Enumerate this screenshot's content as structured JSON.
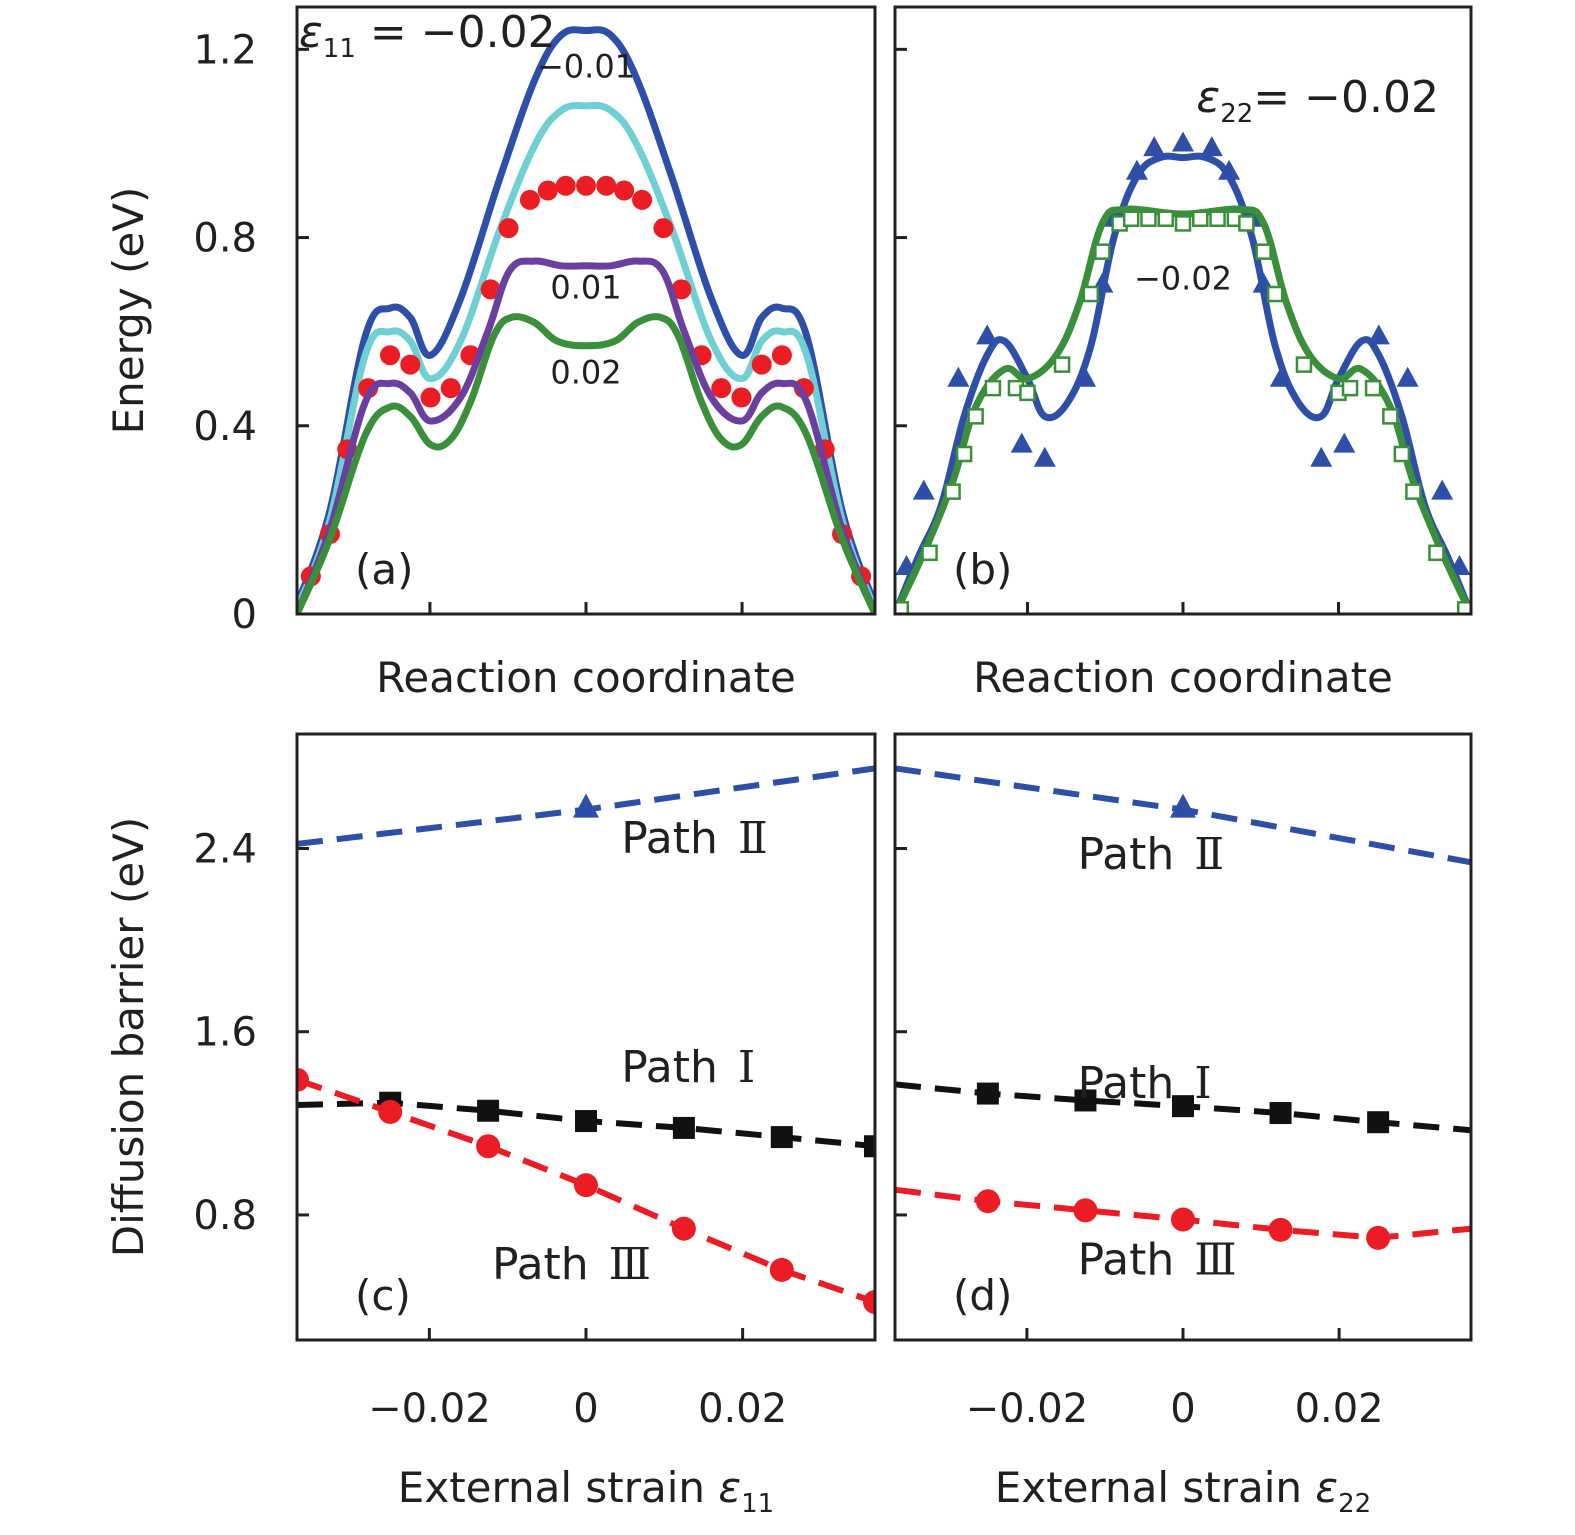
{
  "chart_data": [
    {
      "panel": "a",
      "type": "line",
      "panel_label": "(a)",
      "xlabel": "Reaction coordinate",
      "ylabel": "Energy (eV)",
      "ylim": [
        0,
        1.29
      ],
      "xlim": [
        0,
        1
      ],
      "yticks": [
        0,
        0.4,
        0.8,
        1.2
      ],
      "ytick_labels": [
        "0",
        "0.4",
        "0.8",
        "1.2"
      ],
      "xticks": [
        0.23,
        0.5,
        0.77
      ],
      "xtick_labels": [
        "",
        "",
        ""
      ],
      "annotations": [
        {
          "text_parts": [
            "ε",
            "11",
            " = −0.02"
          ],
          "anchor": "top-left"
        },
        {
          "text": "−0.01",
          "x": 0.5,
          "y": 1.14
        },
        {
          "text": "0.01",
          "x": 0.5,
          "y": 0.67
        },
        {
          "text": "0.02",
          "x": 0.5,
          "y": 0.49
        }
      ],
      "series": [
        {
          "name": "ε11 = −0.02",
          "style": "line",
          "color": "#2e4fa8",
          "x": [
            0,
            0.057,
            0.118,
            0.161,
            0.196,
            0.231,
            0.283,
            0.352,
            0.413,
            0.457,
            0.5
          ],
          "y": [
            0.02,
            0.22,
            0.59,
            0.65,
            0.63,
            0.55,
            0.67,
            0.93,
            1.14,
            1.23,
            1.24
          ],
          "mirrored": true
        },
        {
          "name": "ε11 = −0.01",
          "style": "line",
          "color": "#6fd0d3",
          "x": [
            0,
            0.057,
            0.118,
            0.161,
            0.196,
            0.231,
            0.283,
            0.352,
            0.413,
            0.457,
            0.5
          ],
          "y": [
            0.01,
            0.2,
            0.55,
            0.6,
            0.58,
            0.5,
            0.58,
            0.82,
            1.0,
            1.07,
            1.08
          ],
          "mirrored": true
        },
        {
          "name": "ε11 = 0",
          "style": "markers-circle",
          "color": "#ec1c24",
          "x": [
            0.024,
            0.057,
            0.087,
            0.123,
            0.161,
            0.196,
            0.231,
            0.266,
            0.3,
            0.335,
            0.366,
            0.403,
            0.434,
            0.465,
            0.5
          ],
          "y": [
            0.08,
            0.17,
            0.35,
            0.48,
            0.55,
            0.53,
            0.46,
            0.48,
            0.55,
            0.69,
            0.82,
            0.88,
            0.9,
            0.91,
            0.91
          ],
          "mirrored": true
        },
        {
          "name": "ε11 = 0.01",
          "style": "line",
          "color": "#6a3fa0",
          "x": [
            0,
            0.057,
            0.118,
            0.161,
            0.196,
            0.231,
            0.283,
            0.33,
            0.368,
            0.41,
            0.457,
            0.5
          ],
          "y": [
            0.0,
            0.18,
            0.45,
            0.49,
            0.47,
            0.41,
            0.46,
            0.6,
            0.73,
            0.75,
            0.74,
            0.74
          ],
          "mirrored": true
        },
        {
          "name": "ε11 = 0.02",
          "style": "line",
          "color": "#3a8f3a",
          "x": [
            0,
            0.057,
            0.118,
            0.161,
            0.196,
            0.231,
            0.265,
            0.3,
            0.34,
            0.37,
            0.41,
            0.45,
            0.5
          ],
          "y": [
            0.0,
            0.16,
            0.38,
            0.44,
            0.42,
            0.36,
            0.37,
            0.45,
            0.59,
            0.63,
            0.62,
            0.58,
            0.57
          ],
          "mirrored": true
        }
      ]
    },
    {
      "panel": "b",
      "type": "line",
      "panel_label": "(b)",
      "xlabel": "Reaction coordinate",
      "ylabel": "",
      "ylim": [
        0,
        1.29
      ],
      "xlim": [
        0,
        1
      ],
      "yticks": [
        0,
        0.4,
        0.8,
        1.2
      ],
      "ytick_labels": [
        "",
        "",
        "",
        ""
      ],
      "xticks": [
        0.23,
        0.5,
        0.77
      ],
      "xtick_labels": [
        "",
        "",
        ""
      ],
      "annotations": [
        {
          "text_parts": [
            "ε",
            "22",
            "= −0.02"
          ],
          "anchor": "top-right"
        },
        {
          "text": "−0.02",
          "x": 0.5,
          "y": 0.69
        }
      ],
      "series": [
        {
          "name": "blue line",
          "style": "line",
          "color": "#2e4fa8",
          "x": [
            0,
            0.04,
            0.08,
            0.12,
            0.16,
            0.19,
            0.23,
            0.26,
            0.3,
            0.34,
            0.38,
            0.42,
            0.46,
            0.5
          ],
          "y": [
            0.0,
            0.12,
            0.23,
            0.42,
            0.55,
            0.58,
            0.5,
            0.42,
            0.45,
            0.57,
            0.8,
            0.93,
            0.97,
            0.97
          ],
          "mirrored": true
        },
        {
          "name": "blue triangles",
          "style": "markers-triangle",
          "color": "#2e4fa8",
          "x": [
            0.02,
            0.05,
            0.11,
            0.16,
            0.22,
            0.26,
            0.33,
            0.36,
            0.38,
            0.42,
            0.45,
            0.5
          ],
          "y": [
            0.1,
            0.26,
            0.5,
            0.59,
            0.36,
            0.33,
            0.5,
            0.7,
            0.84,
            0.94,
            0.99,
            1.0
          ],
          "mirrored": true
        },
        {
          "name": "green line",
          "style": "line",
          "color": "#3a8f3a",
          "x": [
            0,
            0.05,
            0.1,
            0.14,
            0.19,
            0.23,
            0.28,
            0.32,
            0.36,
            0.4,
            0.5
          ],
          "y": [
            0.0,
            0.13,
            0.28,
            0.44,
            0.52,
            0.5,
            0.55,
            0.66,
            0.83,
            0.86,
            0.85
          ],
          "mirrored": true
        },
        {
          "name": "green squares",
          "style": "markers-open-square",
          "color": "#3a8f3a",
          "x": [
            0.01,
            0.06,
            0.1,
            0.12,
            0.14,
            0.17,
            0.21,
            0.23,
            0.29,
            0.34,
            0.36,
            0.39,
            0.41,
            0.44,
            0.47,
            0.5
          ],
          "y": [
            0.01,
            0.13,
            0.26,
            0.34,
            0.42,
            0.48,
            0.48,
            0.47,
            0.53,
            0.68,
            0.77,
            0.83,
            0.84,
            0.84,
            0.84,
            0.83
          ],
          "mirrored": true
        }
      ]
    },
    {
      "panel": "c",
      "type": "line",
      "panel_label": "(c)",
      "xlabel_parts": [
        "External strain ",
        "ε",
        "11"
      ],
      "ylabel": "Diffusion barrier (eV)",
      "xlim": [
        -0.0369,
        0.0369
      ],
      "ylim": [
        0.254,
        2.9
      ],
      "xticks": [
        -0.02,
        0,
        0.02
      ],
      "xtick_labels": [
        "−0.02",
        "0",
        "0.02"
      ],
      "yticks": [
        0.8,
        1.6,
        2.4
      ],
      "ytick_labels": [
        "0.8",
        "1.6",
        "2.4"
      ],
      "series": [
        {
          "name": "Path Ⅱ",
          "style": "dashed-triangle",
          "color": "#2e4fa8",
          "x": [
            -0.0369,
            0,
            0.0369
          ],
          "y": [
            2.42,
            2.57,
            2.75
          ],
          "marker_x": [
            0
          ],
          "marker_y": [
            2.57
          ],
          "label": "Path",
          "numeral": "Ⅱ",
          "label_pos": {
            "x": 0.0045,
            "y": 2.38
          }
        },
        {
          "name": "Path Ⅰ",
          "style": "dashed-square",
          "color": "#111111",
          "x": [
            -0.0369,
            -0.025,
            -0.0125,
            0,
            0.0125,
            0.025,
            0.0369
          ],
          "y": [
            1.28,
            1.29,
            1.255,
            1.21,
            1.18,
            1.14,
            1.1
          ],
          "marker_x": [
            -0.025,
            -0.0125,
            0,
            0.0125,
            0.025,
            0.0369
          ],
          "marker_y": [
            1.29,
            1.255,
            1.21,
            1.18,
            1.14,
            1.1
          ],
          "label": "Path",
          "numeral": "Ⅰ",
          "label_pos": {
            "x": 0.0045,
            "y": 1.38
          }
        },
        {
          "name": "Path Ⅲ",
          "style": "dashed-circle",
          "color": "#ec1c24",
          "x": [
            -0.0369,
            -0.025,
            -0.0125,
            0,
            0.0125,
            0.025,
            0.0369
          ],
          "y": [
            1.39,
            1.25,
            1.1,
            0.93,
            0.74,
            0.56,
            0.42
          ],
          "marker_x": [
            -0.0369,
            -0.025,
            -0.0125,
            0,
            0.0125,
            0.025,
            0.0369
          ],
          "marker_y": [
            1.39,
            1.25,
            1.1,
            0.93,
            0.74,
            0.56,
            0.42
          ],
          "label": "Path",
          "numeral": "Ⅲ",
          "label_pos": {
            "x": -0.012,
            "y": 0.52
          }
        }
      ]
    },
    {
      "panel": "d",
      "type": "line",
      "panel_label": "(d)",
      "xlabel_parts": [
        "External strain ",
        "ε",
        "22"
      ],
      "ylabel": "",
      "xlim": [
        -0.0369,
        0.0369
      ],
      "ylim": [
        0.254,
        2.9
      ],
      "xticks": [
        -0.02,
        0,
        0.02
      ],
      "xtick_labels": [
        "−0.02",
        "0",
        "0.02"
      ],
      "yticks": [
        0.8,
        1.6,
        2.4
      ],
      "ytick_labels": [
        "",
        "",
        ""
      ],
      "series": [
        {
          "name": "Path Ⅱ",
          "style": "dashed-triangle",
          "color": "#2e4fa8",
          "x": [
            -0.0369,
            0,
            0.0369
          ],
          "y": [
            2.75,
            2.57,
            2.34
          ],
          "marker_x": [
            0
          ],
          "marker_y": [
            2.57
          ],
          "label": "Path",
          "numeral": "Ⅱ",
          "label_pos": {
            "x": -0.0135,
            "y": 2.31
          }
        },
        {
          "name": "Path Ⅰ",
          "style": "dashed-square",
          "color": "#111111",
          "x": [
            -0.0369,
            -0.025,
            -0.0125,
            0,
            0.0125,
            0.025,
            0.0369
          ],
          "y": [
            1.37,
            1.33,
            1.3,
            1.275,
            1.245,
            1.205,
            1.17
          ],
          "marker_x": [
            -0.025,
            -0.0125,
            0,
            0.0125,
            0.025
          ],
          "marker_y": [
            1.33,
            1.3,
            1.275,
            1.245,
            1.205
          ],
          "label": "Path",
          "numeral": "Ⅰ",
          "label_pos": {
            "x": -0.0135,
            "y": 1.31
          }
        },
        {
          "name": "Path Ⅲ",
          "style": "dashed-circle",
          "color": "#ec1c24",
          "x": [
            -0.0369,
            -0.025,
            -0.0125,
            0,
            0.0125,
            0.025,
            0.0369
          ],
          "y": [
            0.91,
            0.86,
            0.82,
            0.78,
            0.735,
            0.7,
            0.74
          ],
          "marker_x": [
            -0.025,
            -0.0125,
            0,
            0.0125,
            0.025
          ],
          "marker_y": [
            0.86,
            0.82,
            0.78,
            0.735,
            0.7
          ],
          "label": "Path",
          "numeral": "Ⅲ",
          "label_pos": {
            "x": -0.0135,
            "y": 0.54
          }
        }
      ]
    }
  ]
}
